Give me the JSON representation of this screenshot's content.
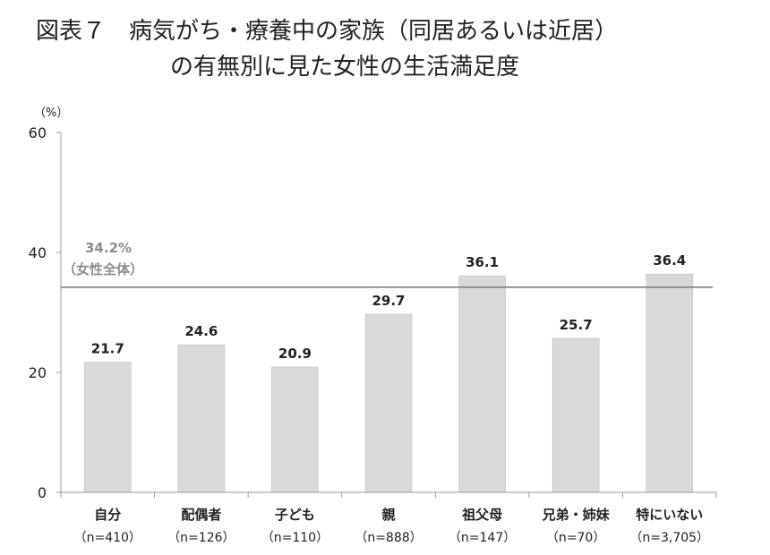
{
  "chart_data": {
    "type": "bar",
    "title": "図表７　病気がち・療養中の家族（同居あるいは近居）",
    "subtitle": "の有無別に見た女性の生活満足度",
    "ylabel": "（%）",
    "ylim": [
      0,
      60
    ],
    "yticks": [
      0,
      20,
      40,
      60
    ],
    "grid": false,
    "categories": [
      {
        "label": "自分",
        "n": "（n=410）"
      },
      {
        "label": "配偶者",
        "n": "（n=126）"
      },
      {
        "label": "子ども",
        "n": "（n=110）"
      },
      {
        "label": "親",
        "n": "（n=888）"
      },
      {
        "label": "祖父母",
        "n": "（n=147）"
      },
      {
        "label": "兄弟・姉妹",
        "n": "（n=70）"
      },
      {
        "label": "特にいない",
        "n": "（n=3,705）"
      }
    ],
    "values": [
      21.7,
      24.6,
      20.9,
      29.7,
      36.1,
      25.7,
      36.4
    ],
    "value_labels": [
      "21.7",
      "24.6",
      "20.9",
      "29.7",
      "36.1",
      "25.7",
      "36.4"
    ],
    "reference_line": {
      "value": 34.2,
      "label_value": "34.2%",
      "label_text": "（女性全体）"
    },
    "colors": {
      "bar": "#d9d9d9",
      "bar_stroke": "#bfbfbf",
      "axis": "#9a9a9a",
      "reference": "#7f7f7f",
      "reference_text": "#8c8c8c",
      "text": "#222222"
    }
  }
}
